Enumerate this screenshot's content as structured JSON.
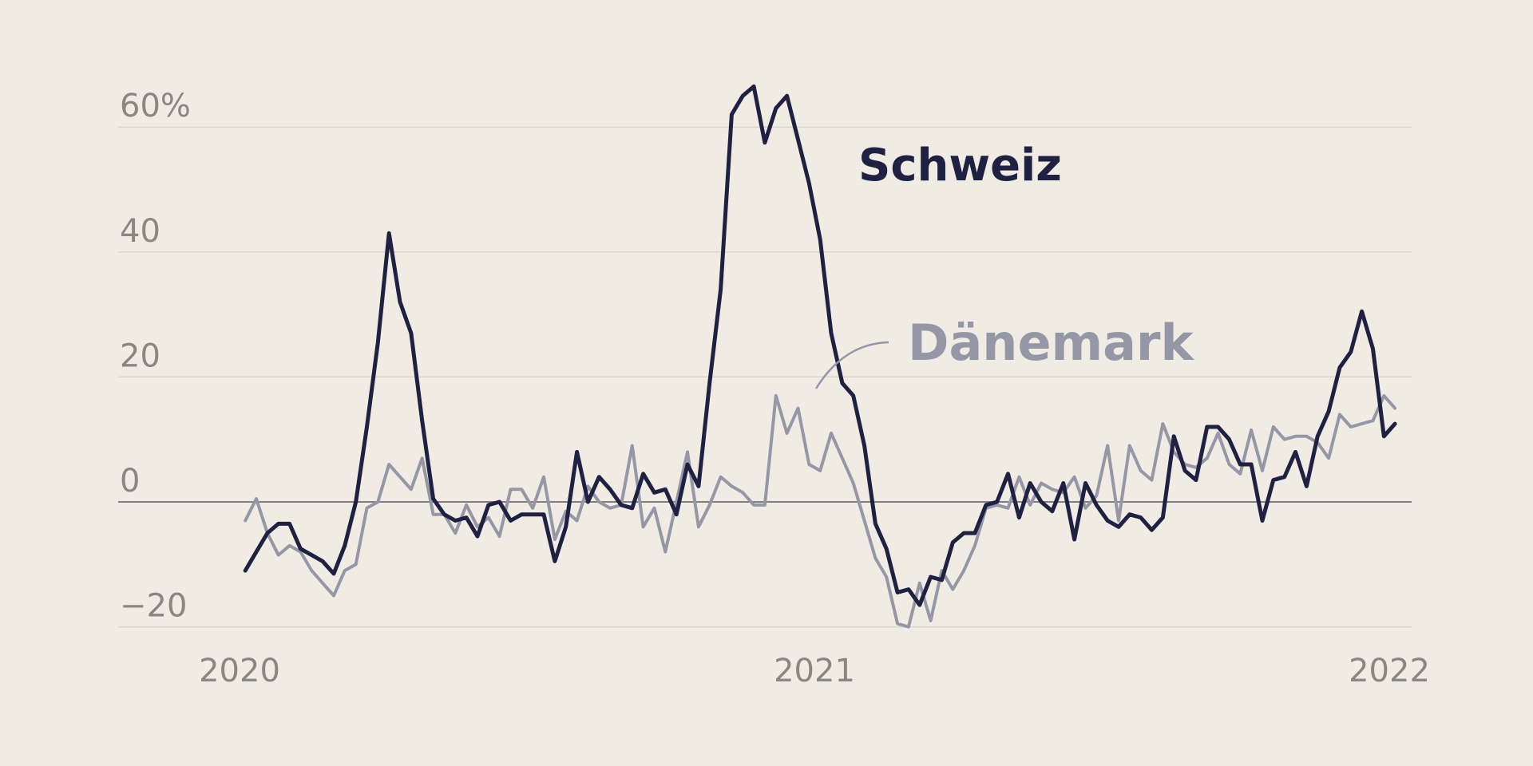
{
  "chart_data": {
    "type": "line",
    "x_unit": "week",
    "x_range": [
      "2020-01",
      "2022-01"
    ],
    "y_ticks": [
      {
        "value": 60,
        "label": "60%"
      },
      {
        "value": 40,
        "label": "40"
      },
      {
        "value": 20,
        "label": "20"
      },
      {
        "value": 0,
        "label": "0"
      },
      {
        "value": -20,
        "label": "−20"
      }
    ],
    "x_ticks": [
      {
        "value": 2020,
        "label": "2020"
      },
      {
        "value": 2021,
        "label": "2021"
      },
      {
        "value": 2022,
        "label": "2022"
      }
    ],
    "ylim": [
      -20,
      65
    ],
    "grid": true,
    "series": [
      {
        "name": "Dänemark",
        "color": "#9597a7",
        "x_start": 2020.01,
        "x_step": 0.01923,
        "values": [
          -3,
          0.5,
          -5,
          -8.5,
          -7,
          -8,
          -11,
          -13,
          -15,
          -11,
          -10,
          -1,
          0,
          6,
          4,
          2,
          7,
          -2,
          -2,
          -5,
          -0.5,
          -4,
          -2.5,
          -5.5,
          2,
          2,
          -1,
          4,
          -6,
          -1.5,
          -3,
          2.5,
          0,
          -1,
          -0.5,
          9,
          -4,
          -1,
          -8,
          0,
          8,
          -4,
          -0.5,
          4,
          2.5,
          1.5,
          -0.5,
          -0.5,
          17,
          11,
          15,
          6,
          5,
          11,
          7,
          3,
          -3,
          -9,
          -12,
          -19.5,
          -20,
          -13,
          -19,
          -11,
          -14,
          -11,
          -7,
          -1,
          -0.5,
          -1,
          4,
          -0.5,
          3,
          2,
          1.5,
          4,
          -1,
          1,
          9,
          -3,
          9,
          5,
          3.5,
          12.5,
          8,
          6,
          5.5,
          7,
          11,
          6,
          4.5,
          11.5,
          5,
          12,
          10,
          10.5,
          10.5,
          9.5,
          7,
          14,
          12,
          12.5,
          13,
          17,
          15
        ]
      },
      {
        "name": "Schweiz",
        "color": "#1f2142",
        "x_start": 2020.01,
        "x_step": 0.01923,
        "values": [
          -11,
          -8,
          -5,
          -3.5,
          -3.5,
          -7.5,
          -8.5,
          -9.5,
          -11.5,
          -7,
          0,
          12,
          25.5,
          43,
          32,
          27,
          13,
          0.5,
          -2,
          -3,
          -2.5,
          -5.5,
          -0.5,
          0,
          -3,
          -2,
          -2,
          -2,
          -9.5,
          -4,
          8,
          0,
          4,
          2,
          -0.5,
          -1,
          4.5,
          1.5,
          2,
          -2,
          6,
          2.5,
          19,
          34,
          62,
          65,
          66.5,
          57.5,
          63,
          65,
          58,
          51,
          42,
          27,
          19,
          17,
          9,
          -3.5,
          -7.5,
          -14.5,
          -14,
          -16.5,
          -12,
          -12.5,
          -6.5,
          -5,
          -5,
          -0.5,
          0,
          4.5,
          -2.5,
          3,
          0,
          -1.5,
          3,
          -6,
          3,
          -0.5,
          -3,
          -4,
          -2,
          -2.5,
          -4.5,
          -2.5,
          10.5,
          5,
          3.5,
          12,
          12,
          10,
          6,
          6,
          -3,
          3.5,
          4,
          8,
          2.5,
          10.5,
          14.5,
          21.5,
          24,
          30.5,
          24.5,
          10.5,
          12.5
        ]
      }
    ],
    "annotations": [
      {
        "series": "Schweiz",
        "text": "Schweiz",
        "color": "#1f2142"
      },
      {
        "series": "Dänemark",
        "text": "Dänemark",
        "color": "#9597a7"
      }
    ]
  }
}
